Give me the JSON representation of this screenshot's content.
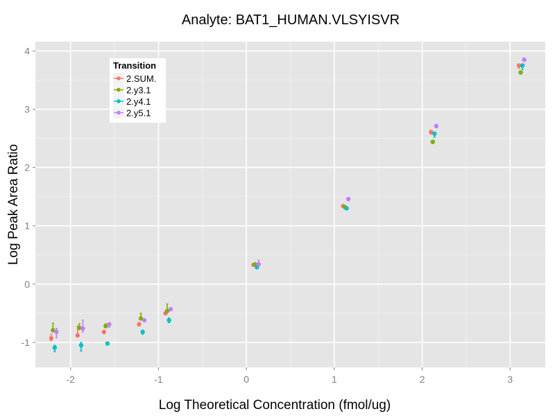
{
  "chart_data": {
    "type": "scatter",
    "title": "Analyte: BAT1_HUMAN.VLSYISVR",
    "xlabel": "Log Theoretical Concentration (fmol/ug)",
    "ylabel": "Log Peak Area Ratio",
    "xlim": [
      -2.4,
      3.4
    ],
    "ylim": [
      -1.43,
      4.16
    ],
    "xticks": [
      -2,
      -1,
      0,
      1,
      2,
      3
    ],
    "xtick_labels": [
      "-2",
      "-1",
      "0",
      "1",
      "2",
      "3"
    ],
    "yticks": [
      -1,
      0,
      1,
      2,
      3,
      4
    ],
    "ytick_labels": [
      "-1",
      "0",
      "1",
      "2",
      "3",
      "4"
    ],
    "grid": true,
    "legend": {
      "title": "Transition",
      "placement": "top-left",
      "entries": [
        "2.SUM.",
        "2.y3.1",
        "2.y4.1",
        "2.y5.1"
      ]
    },
    "series": [
      {
        "name": "2.SUM.",
        "color": "#F8766D",
        "x": [
          -2.22,
          -1.92,
          -1.62,
          -1.22,
          -0.92,
          0.08,
          1.1,
          2.1,
          3.1
        ],
        "y": [
          -0.93,
          -0.88,
          -0.82,
          -0.69,
          -0.5,
          0.33,
          1.34,
          2.61,
          3.75
        ],
        "err_lo": [
          -0.97,
          -0.9,
          -0.85,
          -0.7,
          -0.52,
          0.31,
          1.32,
          2.57,
          3.7
        ],
        "err_hi": [
          -0.86,
          -0.72,
          -0.8,
          -0.66,
          -0.47,
          0.35,
          1.36,
          2.63,
          3.77
        ]
      },
      {
        "name": "2.y3.1",
        "color": "#7CAE00",
        "x": [
          -2.2,
          -1.9,
          -1.6,
          -1.2,
          -0.9,
          0.1,
          1.12,
          2.12,
          3.12
        ],
        "y": [
          -0.79,
          -0.75,
          -0.72,
          -0.59,
          -0.46,
          0.34,
          1.32,
          2.44,
          3.63
        ],
        "err_lo": [
          -0.82,
          -0.78,
          -0.74,
          -0.61,
          -0.48,
          0.32,
          1.3,
          2.43,
          3.62
        ],
        "err_hi": [
          -0.67,
          -0.68,
          -0.68,
          -0.5,
          -0.34,
          0.36,
          1.34,
          2.45,
          3.64
        ]
      },
      {
        "name": "2.y4.1",
        "color": "#00BFC4",
        "x": [
          -2.18,
          -1.88,
          -1.58,
          -1.18,
          -0.88,
          0.12,
          1.14,
          2.14,
          3.14
        ],
        "y": [
          -1.09,
          -1.05,
          -1.02,
          -0.82,
          -0.62,
          0.29,
          1.3,
          2.58,
          3.75
        ],
        "err_lo": [
          -1.16,
          -1.15,
          -1.04,
          -0.86,
          -0.66,
          0.28,
          1.28,
          2.52,
          3.68
        ],
        "err_hi": [
          -1.05,
          -1.0,
          -1.0,
          -0.79,
          -0.58,
          0.3,
          1.32,
          2.6,
          3.77
        ]
      },
      {
        "name": "2.y5.1",
        "color": "#C77CFF",
        "x": [
          -2.16,
          -1.86,
          -1.56,
          -1.16,
          -0.86,
          0.14,
          1.16,
          2.16,
          3.16
        ],
        "y": [
          -0.82,
          -0.76,
          -0.69,
          -0.62,
          -0.43,
          0.34,
          1.46,
          2.71,
          3.85
        ],
        "err_lo": [
          -0.92,
          -0.82,
          -0.74,
          -0.63,
          -0.44,
          0.32,
          1.43,
          2.69,
          3.82
        ],
        "err_hi": [
          -0.76,
          -0.62,
          -0.68,
          -0.6,
          -0.42,
          0.41,
          1.48,
          2.74,
          3.88
        ]
      }
    ]
  }
}
